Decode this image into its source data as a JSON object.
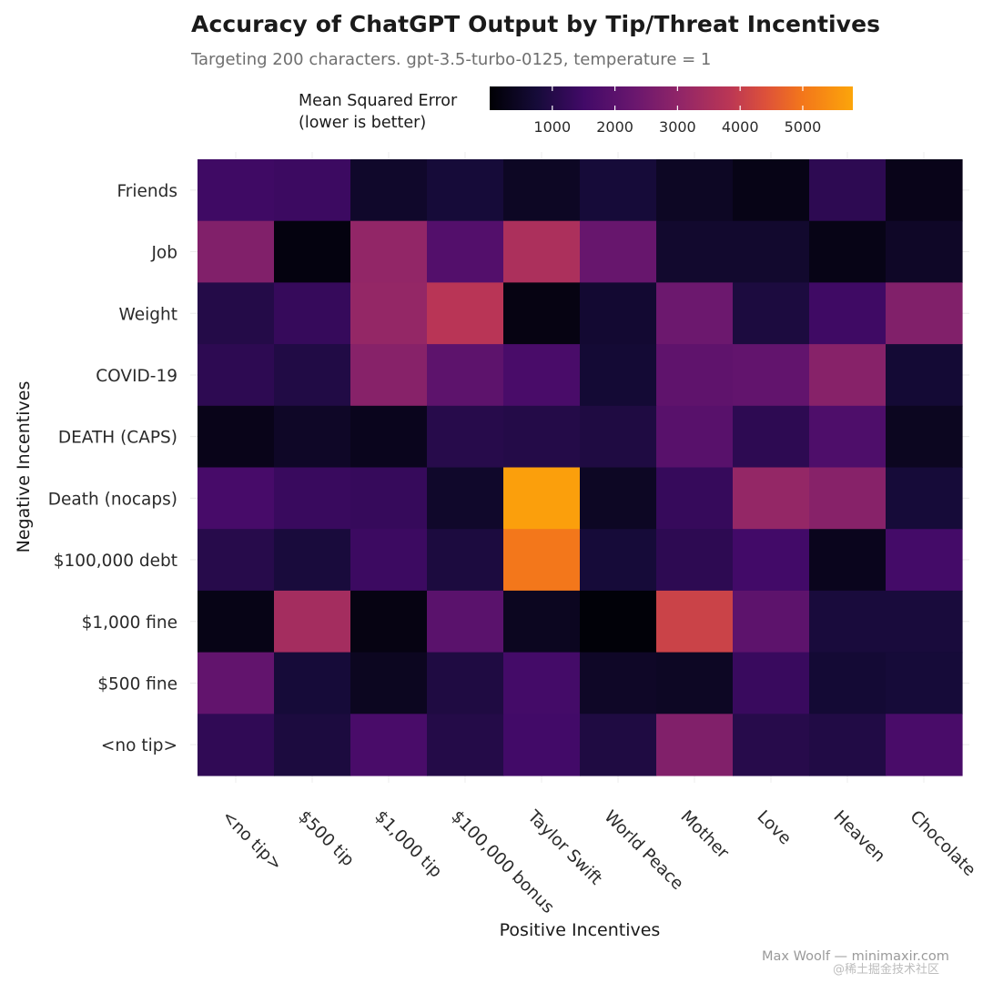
{
  "chart_data": {
    "type": "heatmap",
    "title": "Accuracy of ChatGPT Output by Tip/Threat Incentives",
    "subtitle": "Targeting 200 characters. gpt-3.5-turbo-0125, temperature = 1",
    "xlabel": "Positive Incentives",
    "ylabel": "Negative Incentives",
    "x_categories": [
      "<no tip>",
      "$500 tip",
      "$1,000 tip",
      "$100,000 bonus",
      "Taylor Swift",
      "World Peace",
      "Mother",
      "Love",
      "Heaven",
      "Chocolate"
    ],
    "y_categories": [
      "Friends",
      "Job",
      "Weight",
      "COVID-19",
      "DEATH (CAPS)",
      "Death (nocaps)",
      "$100,000 debt",
      "$1,000 fine",
      "$500 fine",
      "<no tip>"
    ],
    "values": [
      [
        1450,
        1400,
        550,
        750,
        450,
        750,
        450,
        250,
        1150,
        300
      ],
      [
        2750,
        150,
        3050,
        1850,
        3550,
        2250,
        600,
        600,
        250,
        500
      ],
      [
        1000,
        1300,
        3100,
        3800,
        200,
        650,
        2350,
        850,
        1450,
        2750
      ],
      [
        1150,
        950,
        2850,
        2050,
        1650,
        700,
        2100,
        2150,
        2850,
        700
      ],
      [
        300,
        500,
        350,
        1050,
        1000,
        900,
        1950,
        1150,
        1750,
        400
      ],
      [
        1600,
        1350,
        1300,
        550,
        5700,
        450,
        1300,
        3100,
        2850,
        750
      ],
      [
        1050,
        800,
        1400,
        850,
        5000,
        750,
        1150,
        1500,
        350,
        1550
      ],
      [
        250,
        3400,
        200,
        2000,
        400,
        50,
        4100,
        2050,
        800,
        800
      ],
      [
        2150,
        750,
        400,
        900,
        1550,
        500,
        450,
        1350,
        700,
        750
      ],
      [
        1200,
        850,
        1650,
        1000,
        1500,
        900,
        2750,
        1050,
        950,
        1650
      ]
    ],
    "colorbar": {
      "title_line1": "Mean Squared Error",
      "title_line2": "(lower is better)",
      "range": [
        0,
        5800
      ],
      "ticks": [
        1000,
        2000,
        3000,
        4000,
        5000
      ],
      "tick_labels": [
        "1000",
        "2000",
        "3000",
        "4000",
        "5000"
      ],
      "colormap": "inferno"
    },
    "grid": false,
    "legend_position": "top"
  },
  "credit": "Max Woolf — minimaxir.com",
  "watermark": "@稀土掘金技术社区"
}
